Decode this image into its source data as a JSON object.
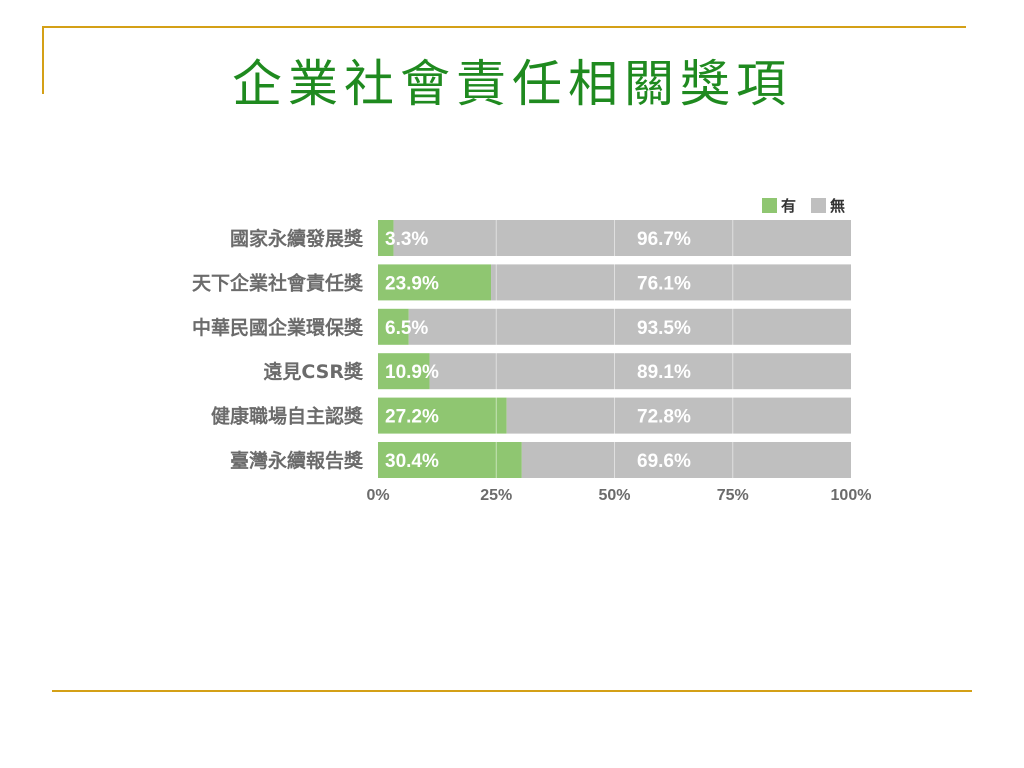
{
  "slide": {
    "title": "企業社會責任相關獎項"
  },
  "chart_data": {
    "type": "bar",
    "orientation": "horizontal",
    "stacked": true,
    "percent_stacked": true,
    "categories": [
      "國家永續發展獎",
      "天下企業社會責任獎",
      "中華民國企業環保獎",
      "遠見CSR獎",
      "健康職場自主認獎",
      "臺灣永續報告獎"
    ],
    "series": [
      {
        "name": "有",
        "color": "#8fc671",
        "values": [
          3.3,
          23.9,
          6.5,
          10.9,
          27.2,
          30.4
        ],
        "labels": [
          "3.3%",
          "23.9%",
          "6.5%",
          "10.9%",
          "27.2%",
          "30.4%"
        ]
      },
      {
        "name": "無",
        "color": "#bfbfbf",
        "values": [
          96.7,
          76.1,
          93.5,
          89.1,
          72.8,
          69.6
        ],
        "labels": [
          "96.7%",
          "76.1%",
          "93.5%",
          "89.1%",
          "72.8%",
          "69.6%"
        ]
      }
    ],
    "xlim": [
      0,
      100
    ],
    "x_ticks": [
      "0%",
      "25%",
      "50%",
      "75%",
      "100%"
    ],
    "legend_position": "top-right",
    "grid": true
  }
}
